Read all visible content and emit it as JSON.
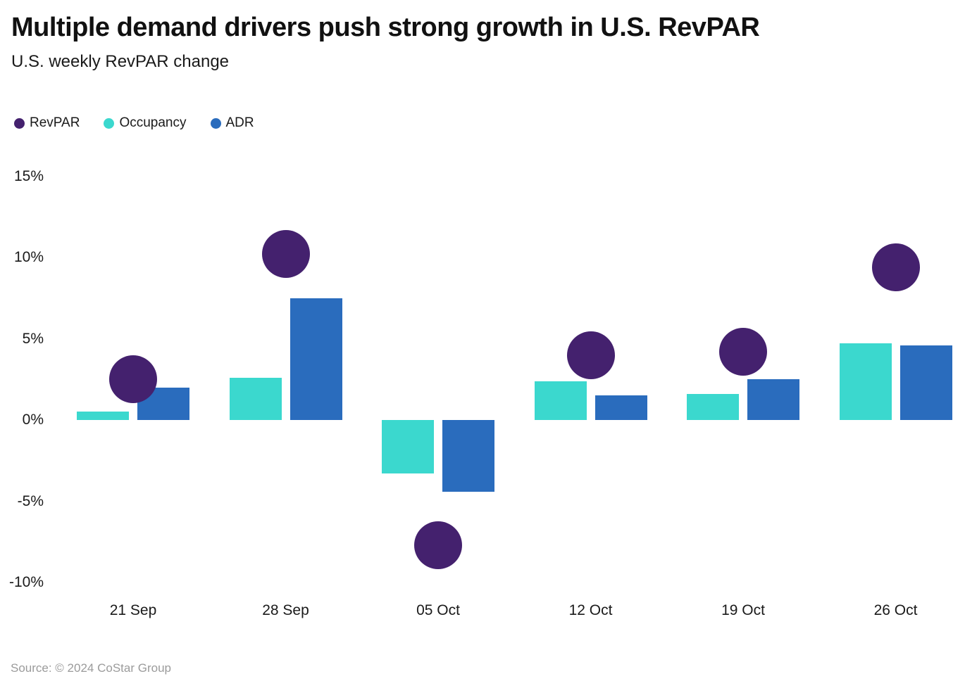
{
  "header": {
    "title": "Multiple demand drivers push strong growth in U.S. RevPAR",
    "subtitle": "U.S. weekly RevPAR change"
  },
  "legend": [
    {
      "label": "RevPAR",
      "color": "#44216e",
      "shape": "circle"
    },
    {
      "label": "Occupancy",
      "color": "#3bd8ce",
      "shape": "circle"
    },
    {
      "label": "ADR",
      "color": "#2a6cbd",
      "shape": "circle"
    }
  ],
  "colors": {
    "revpar": "#44216e",
    "occupancy": "#3bd8ce",
    "adr": "#2a6cbd",
    "title_text": "#111111",
    "axis_text": "#1a1a1a",
    "source_text": "#9b9b9b",
    "background": "#ffffff"
  },
  "chart_data": {
    "type": "bar",
    "title": "Multiple demand drivers push strong growth in U.S. RevPAR",
    "subtitle": "U.S. weekly RevPAR change",
    "categories": [
      "21 Sep",
      "28 Sep",
      "05 Oct",
      "12 Oct",
      "19 Oct",
      "26 Oct"
    ],
    "series": [
      {
        "name": "RevPAR",
        "mark": "circle",
        "color": "#44216e",
        "values": [
          2.5,
          10.2,
          -7.7,
          4.0,
          4.2,
          9.4
        ]
      },
      {
        "name": "Occupancy",
        "mark": "bar",
        "color": "#3bd8ce",
        "values": [
          0.5,
          2.6,
          -3.3,
          2.4,
          1.6,
          4.7
        ]
      },
      {
        "name": "ADR",
        "mark": "bar",
        "color": "#2a6cbd",
        "values": [
          2.0,
          7.5,
          -4.4,
          1.5,
          2.5,
          4.6
        ]
      }
    ],
    "xlabel": "",
    "ylabel": "",
    "ylim": [
      -10,
      15
    ],
    "yticks": [
      15,
      10,
      5,
      0,
      -5,
      -10
    ],
    "ytick_suffix": "%",
    "grid": false,
    "legend_position": "top-left",
    "value_unit": "percent change"
  },
  "footer": {
    "source": "Source: © 2024 CoStar Group"
  }
}
